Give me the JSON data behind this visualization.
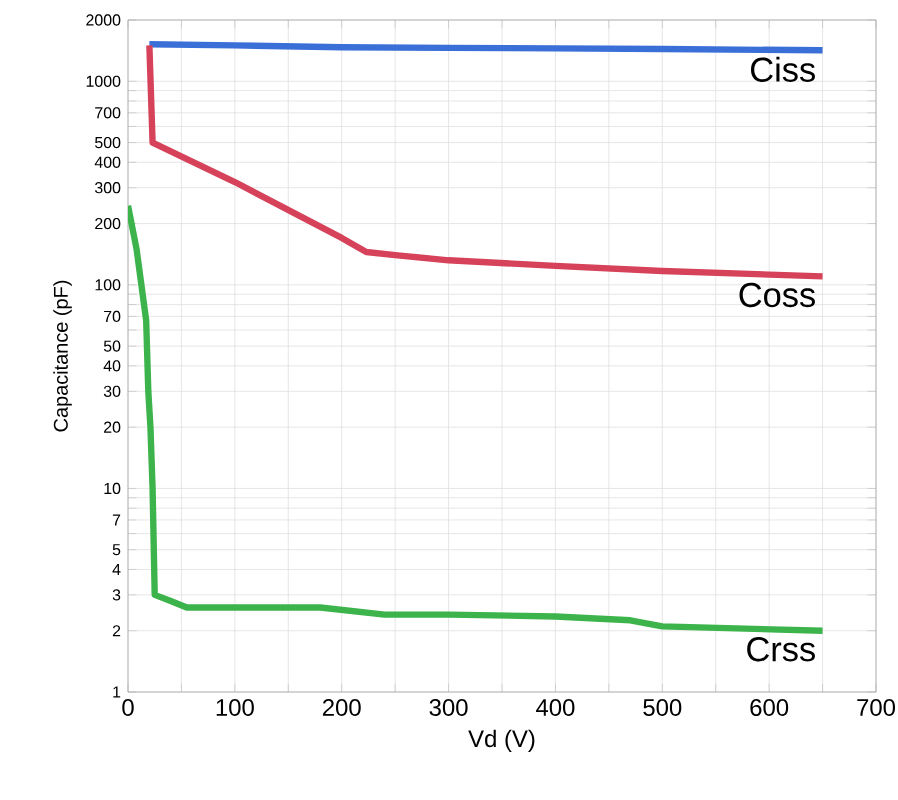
{
  "chart_data": {
    "type": "line",
    "xlabel": "Vd (V)",
    "ylabel": "Capacitance (pF)",
    "log": "y",
    "grid": true,
    "marker": "none",
    "line_style": "solid",
    "xlim": [
      0,
      700
    ],
    "ylim": [
      1,
      2000
    ],
    "xticks": [
      0,
      {
        "value": 50,
        "label": null
      },
      100,
      {
        "value": 150,
        "label": null
      },
      200,
      {
        "value": 250,
        "label": null
      },
      300,
      {
        "value": 350,
        "label": null
      },
      400,
      {
        "value": 450,
        "label": null
      },
      500,
      {
        "value": 550,
        "label": null
      },
      600,
      {
        "value": 650,
        "label": null
      },
      700
    ],
    "yticks": [
      1,
      2,
      3,
      4,
      5,
      {
        "value": 6,
        "label": null
      },
      7,
      {
        "value": 8,
        "label": null
      },
      {
        "value": 9,
        "label": null
      },
      10,
      20,
      30,
      40,
      50,
      {
        "value": 60,
        "label": null
      },
      70,
      {
        "value": 80,
        "label": null
      },
      {
        "value": 90,
        "label": null
      },
      100,
      200,
      300,
      400,
      500,
      {
        "value": 600,
        "label": null
      },
      700,
      {
        "value": 800,
        "label": null
      },
      {
        "value": 900,
        "label": null
      },
      1000,
      2000
    ],
    "series": [
      {
        "name": "Ciss",
        "color": "#3a6fd8",
        "x": [
          20,
          100,
          200,
          300,
          400,
          500,
          650
        ],
        "values": [
          1520,
          1500,
          1470,
          1460,
          1450,
          1440,
          1420
        ]
      },
      {
        "name": "Coss",
        "color": "#d64259",
        "x": [
          20,
          23,
          100,
          200,
          223,
          250,
          300,
          400,
          500,
          650
        ],
        "values": [
          1500,
          500,
          320,
          170,
          145,
          140,
          132,
          124,
          117,
          110
        ]
      },
      {
        "name": "Crss",
        "color": "#3cb44b",
        "x": [
          0,
          8,
          17,
          19,
          21,
          23,
          25,
          40,
          55,
          100,
          180,
          240,
          300,
          400,
          470,
          500,
          650
        ],
        "values": [
          245,
          150,
          67,
          30,
          20,
          10,
          3,
          2.8,
          2.6,
          2.6,
          2.6,
          2.4,
          2.4,
          2.35,
          2.25,
          2.1,
          2.0
        ]
      }
    ]
  }
}
